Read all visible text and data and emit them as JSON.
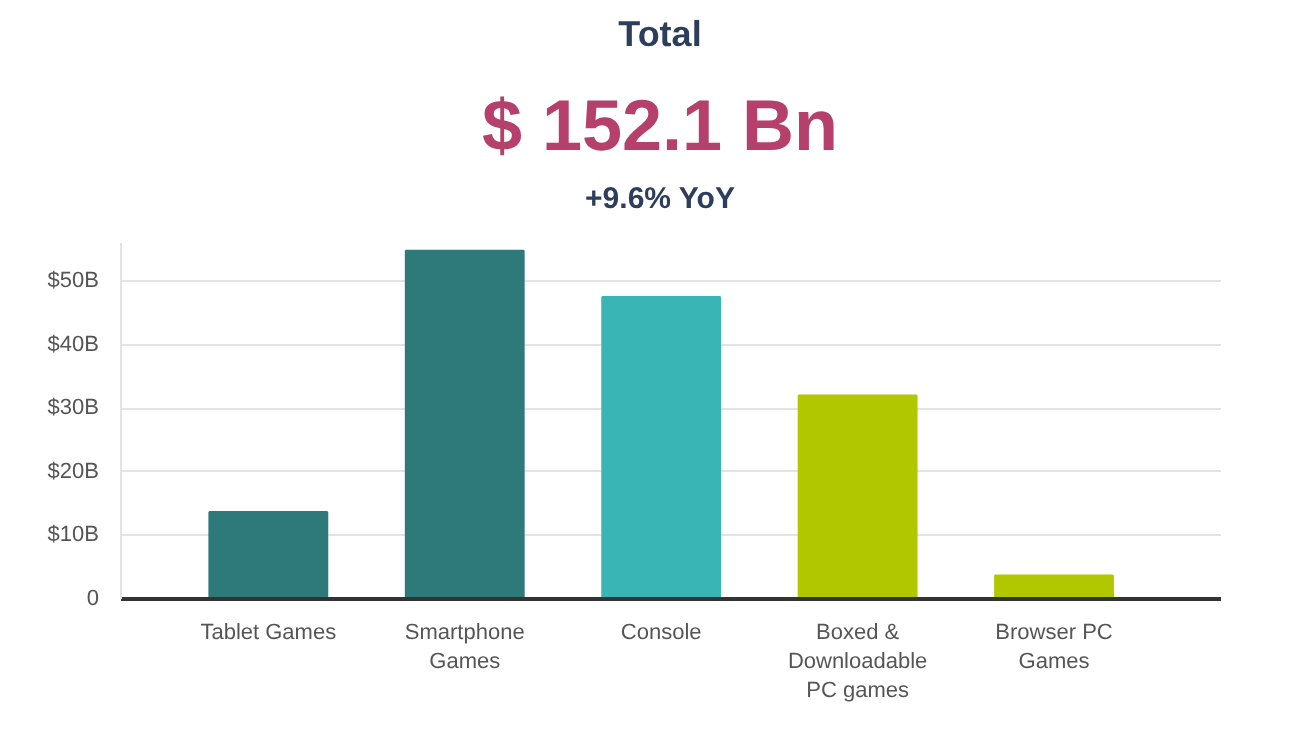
{
  "chart_data": {
    "type": "bar",
    "title": "Total",
    "subtitle": "$ 152.1 Bn",
    "annotations": [
      "+9.6% YoY"
    ],
    "categories": [
      "Tablet Games",
      "Smartphone Games",
      "Console",
      "Boxed & Downloadable PC games",
      "Browser PC Games"
    ],
    "values": [
      13.7,
      54.8,
      47.5,
      32.0,
      3.7
    ],
    "colors": [
      "#2e7a7a",
      "#2e7a7a",
      "#3ab5b5",
      "#b1c800",
      "#b1c800"
    ],
    "ylim": [
      0,
      56
    ],
    "yticks": [
      0,
      {
        "value": 10,
        "label": "$10B"
      },
      {
        "value": 20,
        "label": "$20B"
      },
      {
        "value": 30,
        "label": "$30B"
      },
      {
        "value": 40,
        "label": "$40B"
      },
      {
        "value": 50,
        "label": "$50B"
      }
    ],
    "grid": "y"
  }
}
